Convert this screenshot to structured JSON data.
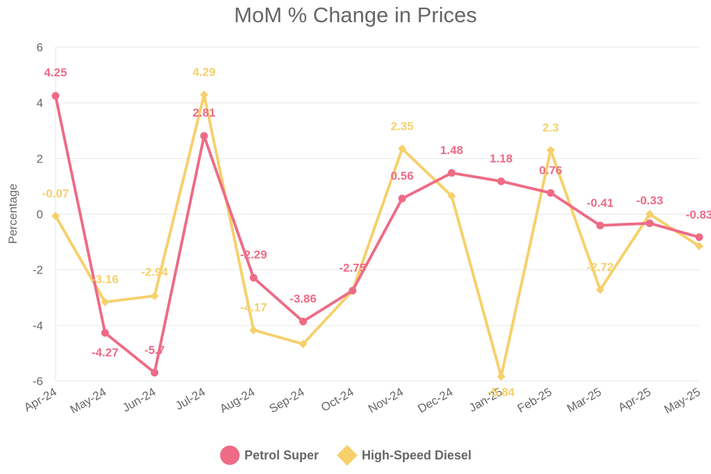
{
  "chart_data": {
    "type": "line",
    "title": "MoM % Change in Prices",
    "ylabel": "Percentage",
    "xlabel": "",
    "ylim": [
      -6,
      6
    ],
    "yticks": [
      -6,
      -4,
      -2,
      0,
      2,
      4,
      6
    ],
    "grid": true,
    "legend_position": "bottom",
    "categories": [
      "Apr-24",
      "May-24",
      "Jun-24",
      "Jul-24",
      "Aug-24",
      "Sep-24",
      "Oct-24",
      "Nov-24",
      "Dec-24",
      "Jan-25",
      "Feb-25",
      "Mar-25",
      "Apr-25",
      "May-25"
    ],
    "series": [
      {
        "name": "Petrol Super",
        "color": "#ee6b86",
        "marker": "circle",
        "values": [
          4.25,
          -4.27,
          -5.7,
          2.81,
          -2.29,
          -3.86,
          -2.75,
          0.56,
          1.48,
          1.18,
          0.76,
          -0.41,
          -0.33,
          -0.83
        ],
        "labels": [
          "4.25",
          "-4.27",
          "-5.7",
          "2.81",
          "-2.29",
          "-3.86",
          "-2.75",
          "0.56",
          "1.48",
          "1.18",
          "0.76",
          "-0.41",
          "-0.33",
          "-0.83"
        ]
      },
      {
        "name": "High-Speed Diesel",
        "color": "#f6d06b",
        "marker": "diamond",
        "values": [
          -0.07,
          -3.16,
          -2.94,
          4.29,
          -4.17,
          -4.67,
          -2.75,
          2.35,
          0.65,
          -5.84,
          2.3,
          -2.72,
          0.0,
          -1.15
        ],
        "labels": [
          "-0.07",
          "-3.16",
          "-2.94",
          "4.29",
          "-4.17",
          null,
          null,
          "2.35",
          null,
          "-5.84",
          "2.3",
          "-2.72",
          null,
          null
        ]
      }
    ]
  }
}
